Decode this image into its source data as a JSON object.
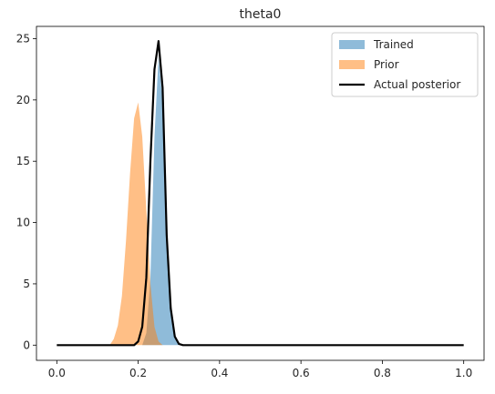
{
  "chart_data": {
    "type": "area",
    "title": "theta0",
    "xlabel": "",
    "ylabel": "",
    "xlim": [
      -0.05,
      1.05
    ],
    "ylim": [
      -1.24,
      26.0
    ],
    "grid": false,
    "legend_position": "top-right",
    "x_ticks": [
      0.0,
      0.2,
      0.4,
      0.6,
      0.8,
      1.0
    ],
    "x_tick_labels": [
      "0.0",
      "0.2",
      "0.4",
      "0.6",
      "0.8",
      "1.0"
    ],
    "y_ticks": [
      0,
      5,
      10,
      15,
      20,
      25
    ],
    "y_tick_labels": [
      "0",
      "5",
      "10",
      "15",
      "20",
      "25"
    ],
    "series": [
      {
        "name": "Prior",
        "kind": "filled",
        "color": "#ff7f0e",
        "alpha": 0.5,
        "x": [
          0.13,
          0.14,
          0.15,
          0.16,
          0.17,
          0.18,
          0.19,
          0.2,
          0.21,
          0.22,
          0.23,
          0.24,
          0.25,
          0.26
        ],
        "values": [
          0.0,
          0.5,
          1.6,
          4.0,
          8.5,
          14.0,
          18.5,
          19.8,
          17.0,
          11.0,
          5.0,
          1.5,
          0.3,
          0.0
        ]
      },
      {
        "name": "Trained",
        "kind": "filled",
        "color": "#1f77b4",
        "alpha": 0.5,
        "x": [
          0.21,
          0.22,
          0.23,
          0.24,
          0.25,
          0.26,
          0.27,
          0.28,
          0.29,
          0.3
        ],
        "values": [
          0.0,
          1.0,
          5.5,
          17.0,
          23.5,
          20.0,
          9.5,
          2.8,
          0.7,
          0.0
        ]
      },
      {
        "name": "Actual posterior",
        "kind": "line",
        "color": "#000000",
        "x": [
          0.0,
          0.19,
          0.2,
          0.21,
          0.22,
          0.23,
          0.24,
          0.25,
          0.26,
          0.27,
          0.28,
          0.29,
          0.3,
          0.31,
          0.32,
          1.0
        ],
        "values": [
          0.0,
          0.0,
          0.3,
          1.5,
          5.5,
          15.0,
          22.5,
          24.8,
          21.0,
          9.0,
          3.0,
          0.7,
          0.1,
          0.0,
          0.0,
          0.0
        ]
      }
    ],
    "legend": [
      "Trained",
      "Prior",
      "Actual posterior"
    ]
  }
}
